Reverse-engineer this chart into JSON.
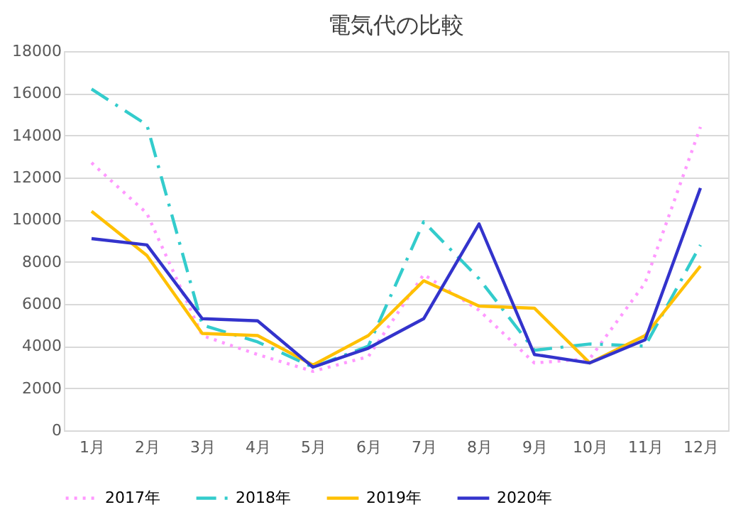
{
  "chart_data": {
    "type": "line",
    "title": "電気代の比較",
    "categories": [
      "1月",
      "2月",
      "3月",
      "4月",
      "5月",
      "6月",
      "7月",
      "8月",
      "9月",
      "10月",
      "11月",
      "12月"
    ],
    "series": [
      {
        "name": "2017年",
        "color": "#ff99ff",
        "line_style": "dotted",
        "values": [
          12700,
          10300,
          4500,
          3600,
          2800,
          3500,
          7400,
          5700,
          3200,
          3400,
          7000,
          14400
        ]
      },
      {
        "name": "2018年",
        "color": "#33cccc",
        "line_style": "dashed",
        "values": [
          16200,
          14500,
          5000,
          4200,
          3000,
          4000,
          9900,
          7200,
          3800,
          4100,
          4000,
          8800
        ]
      },
      {
        "name": "2019年",
        "color": "#ffc000",
        "line_style": "solid",
        "values": [
          10400,
          8300,
          4600,
          4500,
          3100,
          4500,
          7100,
          5900,
          5800,
          3200,
          4500,
          7800
        ]
      },
      {
        "name": "2020年",
        "color": "#3333cc",
        "line_style": "solid",
        "values": [
          9100,
          8800,
          5300,
          5200,
          3000,
          3900,
          5300,
          9800,
          3600,
          3200,
          4300,
          11500
        ]
      }
    ],
    "ylim": [
      0,
      18000
    ],
    "yticks": [
      0,
      2000,
      4000,
      6000,
      8000,
      10000,
      12000,
      14000,
      16000,
      18000
    ],
    "grid": "y",
    "legend": "bottom",
    "marker": "none"
  }
}
